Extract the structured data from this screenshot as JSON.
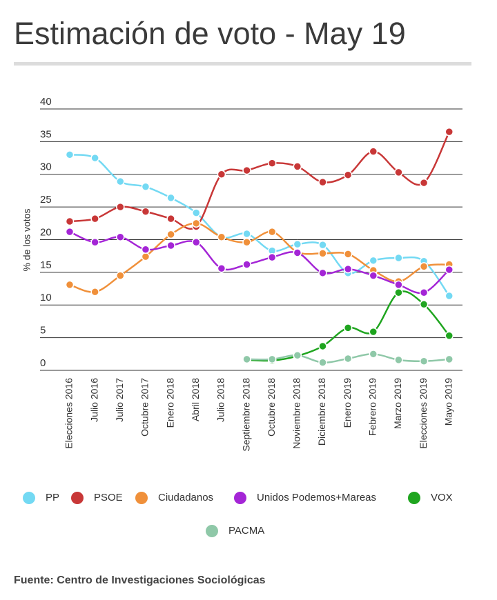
{
  "chart_data": {
    "type": "line",
    "title": "Estimación de voto - May 19",
    "y_label": "% de los votos",
    "source": "Fuente: Centro de Investigaciones Sociológicas",
    "categories": [
      "Elecciones 2016",
      "Julio 2016",
      "Julio 2017",
      "Octubre 2017",
      "Enero 2018",
      "Abril 2018",
      "Julio 2018",
      "Septiembre 2018",
      "Octubre 2018",
      "Noviembre 2018",
      "Diciembre 2018",
      "Enero 2019",
      "Febrero 2019",
      "Marzo 2019",
      "Elecciones 2019",
      "Mayo 2019"
    ],
    "ylim": [
      0,
      40
    ],
    "yticks": [
      0,
      5,
      10,
      15,
      20,
      25,
      30,
      35,
      40
    ],
    "grid": true,
    "series": [
      {
        "name": "PP",
        "color": "#73d9f3",
        "values": [
          33.0,
          32.5,
          28.9,
          28.1,
          26.4,
          24.1,
          20.4,
          20.9,
          18.3,
          19.3,
          19.2,
          14.9,
          16.8,
          17.2,
          16.7,
          11.4
        ]
      },
      {
        "name": "PSOE",
        "color": "#c83737",
        "values": [
          22.8,
          23.2,
          25.0,
          24.3,
          23.2,
          22.0,
          30.0,
          30.6,
          31.7,
          31.2,
          28.8,
          29.9,
          33.5,
          30.3,
          28.7,
          36.5
        ]
      },
      {
        "name": "Ciudadanos",
        "color": "#f0903a",
        "values": [
          13.1,
          12.0,
          14.5,
          17.4,
          20.8,
          22.5,
          20.4,
          19.6,
          21.2,
          18.1,
          17.9,
          17.8,
          15.3,
          13.6,
          15.9,
          16.2
        ]
      },
      {
        "name": "Unidos Podemos+Mareas",
        "color": "#a425d6",
        "values": [
          21.2,
          19.6,
          20.4,
          18.5,
          19.1,
          19.6,
          15.6,
          16.2,
          17.3,
          18.0,
          14.9,
          15.5,
          14.5,
          13.1,
          11.9,
          15.4
        ]
      },
      {
        "name": "VOX",
        "color": "#1fa51f",
        "values": [
          null,
          null,
          null,
          null,
          null,
          null,
          null,
          1.6,
          1.5,
          2.2,
          3.7,
          6.5,
          5.9,
          11.9,
          10.1,
          5.3
        ]
      },
      {
        "name": "PACMA",
        "color": "#8fc8a8",
        "values": [
          null,
          null,
          null,
          null,
          null,
          null,
          null,
          1.7,
          1.7,
          2.3,
          1.2,
          1.8,
          2.5,
          1.6,
          1.4,
          1.7
        ]
      }
    ]
  }
}
